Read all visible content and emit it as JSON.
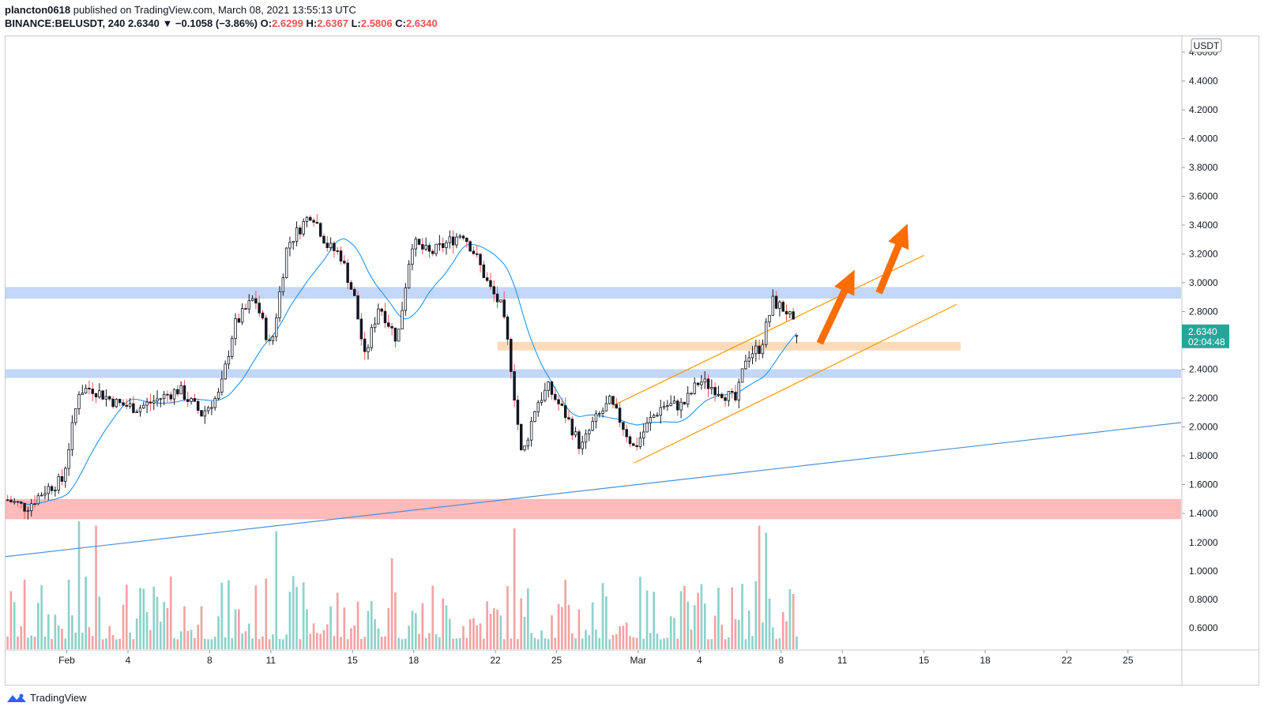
{
  "header": {
    "publisher": "plancton0618",
    "published_text": "published on TradingView.com, March 08, 2021 13:55:13 UTC",
    "symbol": "BINANCE:BELUSDT, 240",
    "last": "2.6340",
    "change": "▼ −0.1058 (−3.86%)",
    "o_label": "O:",
    "o_value": "2.6299",
    "h_label": "H:",
    "h_value": "2.6367",
    "l_label": "L:",
    "l_value": "2.5806",
    "c_label": "C:",
    "c_value": "2.6340"
  },
  "price_badge": {
    "price": "2.6340",
    "countdown": "02:04:48"
  },
  "currency_badge": "USDT",
  "footer": {
    "brand": "TradingView"
  },
  "colors": {
    "up": "#26a69a",
    "down": "#ef5350",
    "vol_up": "#8ed2ca",
    "vol_down": "#f2a3a3",
    "ma": "#2196f3",
    "trend": "#4a90d9",
    "channel": "#ff9800",
    "resistance_zone": "#b8d0f5",
    "support_zone_orange": "#fbd5ae",
    "support_zone_red": "#ffb3b3",
    "arrow": "#ff6d00",
    "badge": "#26a69a"
  },
  "chart_data": {
    "type": "candlestick",
    "timeframe": "240",
    "y_axis": {
      "ticks": [
        "1.4000",
        "1.6000",
        "1.8000",
        "2.0000",
        "2.2000",
        "2.4000",
        "2.6000",
        "2.8000",
        "3.0000",
        "3.2000",
        "3.4000",
        "3.6000",
        "3.8000",
        "4.0000",
        "4.2000",
        "4.4000",
        "4.6000"
      ],
      "ylim": [
        1.33,
        4.66
      ],
      "vol_ticks": [
        "0.6000",
        "0.8000",
        "1.0000",
        "1.2000"
      ],
      "unit": "USDT"
    },
    "x_axis": {
      "ticks": [
        "Feb",
        "4",
        "8",
        "11",
        "15",
        "18",
        "22",
        "25",
        "Mar",
        "4",
        "8",
        "11",
        "15",
        "18",
        "22",
        "25"
      ],
      "tick_days": [
        1,
        4,
        8,
        11,
        15,
        18,
        22,
        25,
        29,
        32,
        36,
        39,
        43,
        46,
        50,
        53
      ],
      "xlim": [
        -2.0,
        55.6
      ]
    },
    "zones": [
      {
        "type": "resistance",
        "low": 2.89,
        "high": 2.97,
        "from_day": -2.0,
        "to_day": 55.6
      },
      {
        "type": "support",
        "low": 2.34,
        "high": 2.4,
        "from_day": -2.0,
        "to_day": 55.6
      },
      {
        "type": "support",
        "low": 2.53,
        "high": 2.59,
        "from_day": 22.1,
        "to_day": 44.8
      },
      {
        "type": "support",
        "low": 1.36,
        "high": 1.5,
        "from_day": -2.0,
        "to_day": 55.6
      }
    ],
    "trendline": {
      "from": [
        -2.0,
        1.1
      ],
      "to": [
        55.6,
        2.03
      ]
    },
    "channel": [
      {
        "from": [
          27.8,
          2.15
        ],
        "to": [
          43.0,
          3.19
        ]
      },
      {
        "from": [
          28.8,
          1.75
        ],
        "to": [
          44.6,
          2.85
        ]
      }
    ],
    "arrows": [
      {
        "from": [
          37.9,
          2.58
        ],
        "to": [
          39.6,
          3.09
        ]
      },
      {
        "from": [
          40.8,
          2.93
        ],
        "to": [
          42.2,
          3.41
        ]
      }
    ],
    "anchors": [
      [
        -2.0,
        1.5
      ],
      [
        -1.0,
        1.44
      ],
      [
        0.0,
        1.57
      ],
      [
        0.8,
        1.63
      ],
      [
        1.6,
        2.25
      ],
      [
        2.2,
        2.27
      ],
      [
        3.5,
        2.16
      ],
      [
        4.5,
        2.13
      ],
      [
        6.5,
        2.26
      ],
      [
        7.6,
        2.09
      ],
      [
        8.5,
        2.23
      ],
      [
        9.2,
        2.7
      ],
      [
        10.2,
        2.9
      ],
      [
        11.0,
        2.54
      ],
      [
        11.8,
        3.26
      ],
      [
        13.0,
        3.49
      ],
      [
        13.8,
        3.25
      ],
      [
        14.4,
        3.2
      ],
      [
        15.1,
        2.89
      ],
      [
        15.6,
        2.48
      ],
      [
        16.3,
        2.85
      ],
      [
        17.2,
        2.6
      ],
      [
        17.9,
        3.28
      ],
      [
        18.8,
        3.2
      ],
      [
        19.9,
        3.3
      ],
      [
        20.4,
        3.35
      ],
      [
        21.0,
        3.2
      ],
      [
        21.7,
        2.97
      ],
      [
        22.3,
        2.83
      ],
      [
        22.7,
        2.5
      ],
      [
        23.3,
        1.78
      ],
      [
        24.0,
        2.16
      ],
      [
        24.6,
        2.27
      ],
      [
        25.5,
        2.07
      ],
      [
        26.2,
        1.85
      ],
      [
        26.8,
        2.03
      ],
      [
        27.6,
        2.17
      ],
      [
        28.1,
        2.05
      ],
      [
        28.8,
        1.85
      ],
      [
        29.6,
        2.05
      ],
      [
        30.2,
        2.15
      ],
      [
        31.2,
        2.15
      ],
      [
        32.0,
        2.32
      ],
      [
        33.0,
        2.25
      ],
      [
        33.8,
        2.18
      ],
      [
        34.3,
        2.5
      ],
      [
        35.0,
        2.55
      ],
      [
        35.6,
        2.87
      ],
      [
        36.3,
        2.8
      ],
      [
        36.8,
        2.64
      ]
    ],
    "volume": {
      "unit": "1e6 (scaled)",
      "max": 1.32
    }
  }
}
